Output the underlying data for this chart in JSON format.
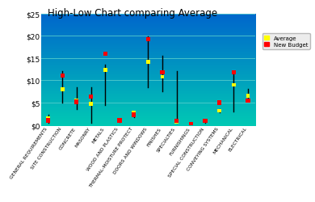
{
  "title": "High-Low Chart comparing Average",
  "categories": [
    "GENERAL REQUIREMENTS",
    "SITE CONSTRUCTION",
    "CONCRETE",
    "MASONRY",
    "METALS",
    "WOOD AND PLASTICS",
    "THERMAL-MOISTURE PROTECT",
    "DOORS AND WINDOWS",
    "FINISHES",
    "SPECIALTIES",
    "FURNISHINGS",
    "SPECIAL CONSTRUCTION",
    "CONVEYING SYSTEMS",
    "MECHANICAL",
    "ELECTRICAL"
  ],
  "average": [
    1.5,
    8.0,
    5.5,
    4.7,
    12.3,
    0.9,
    2.8,
    14.2,
    10.8,
    0.8,
    0.1,
    0.9,
    3.2,
    9.0,
    6.5
  ],
  "new_budget": [
    1.0,
    11.0,
    5.2,
    6.3,
    16.0,
    1.0,
    2.3,
    19.2,
    11.8,
    0.9,
    0.1,
    0.9,
    5.0,
    11.8,
    5.5
  ],
  "high": [
    2.2,
    12.0,
    8.5,
    8.5,
    13.5,
    1.2,
    3.0,
    19.8,
    15.5,
    12.0,
    0.5,
    1.2,
    3.5,
    11.5,
    8.0
  ],
  "low": [
    0.5,
    5.0,
    3.5,
    0.5,
    4.5,
    0.7,
    1.8,
    8.5,
    7.5,
    0.5,
    0.0,
    0.5,
    2.8,
    3.0,
    5.5
  ],
  "ylim": [
    0,
    25
  ],
  "yticks": [
    0,
    5,
    10,
    15,
    20,
    25
  ],
  "ytick_labels": [
    "$0",
    "$5",
    "$10",
    "$15",
    "$20",
    "$25"
  ],
  "line_color": "#000000",
  "avg_color": "#FFFF00",
  "budget_color": "#FF0000",
  "grid_color": "#55CCCC"
}
